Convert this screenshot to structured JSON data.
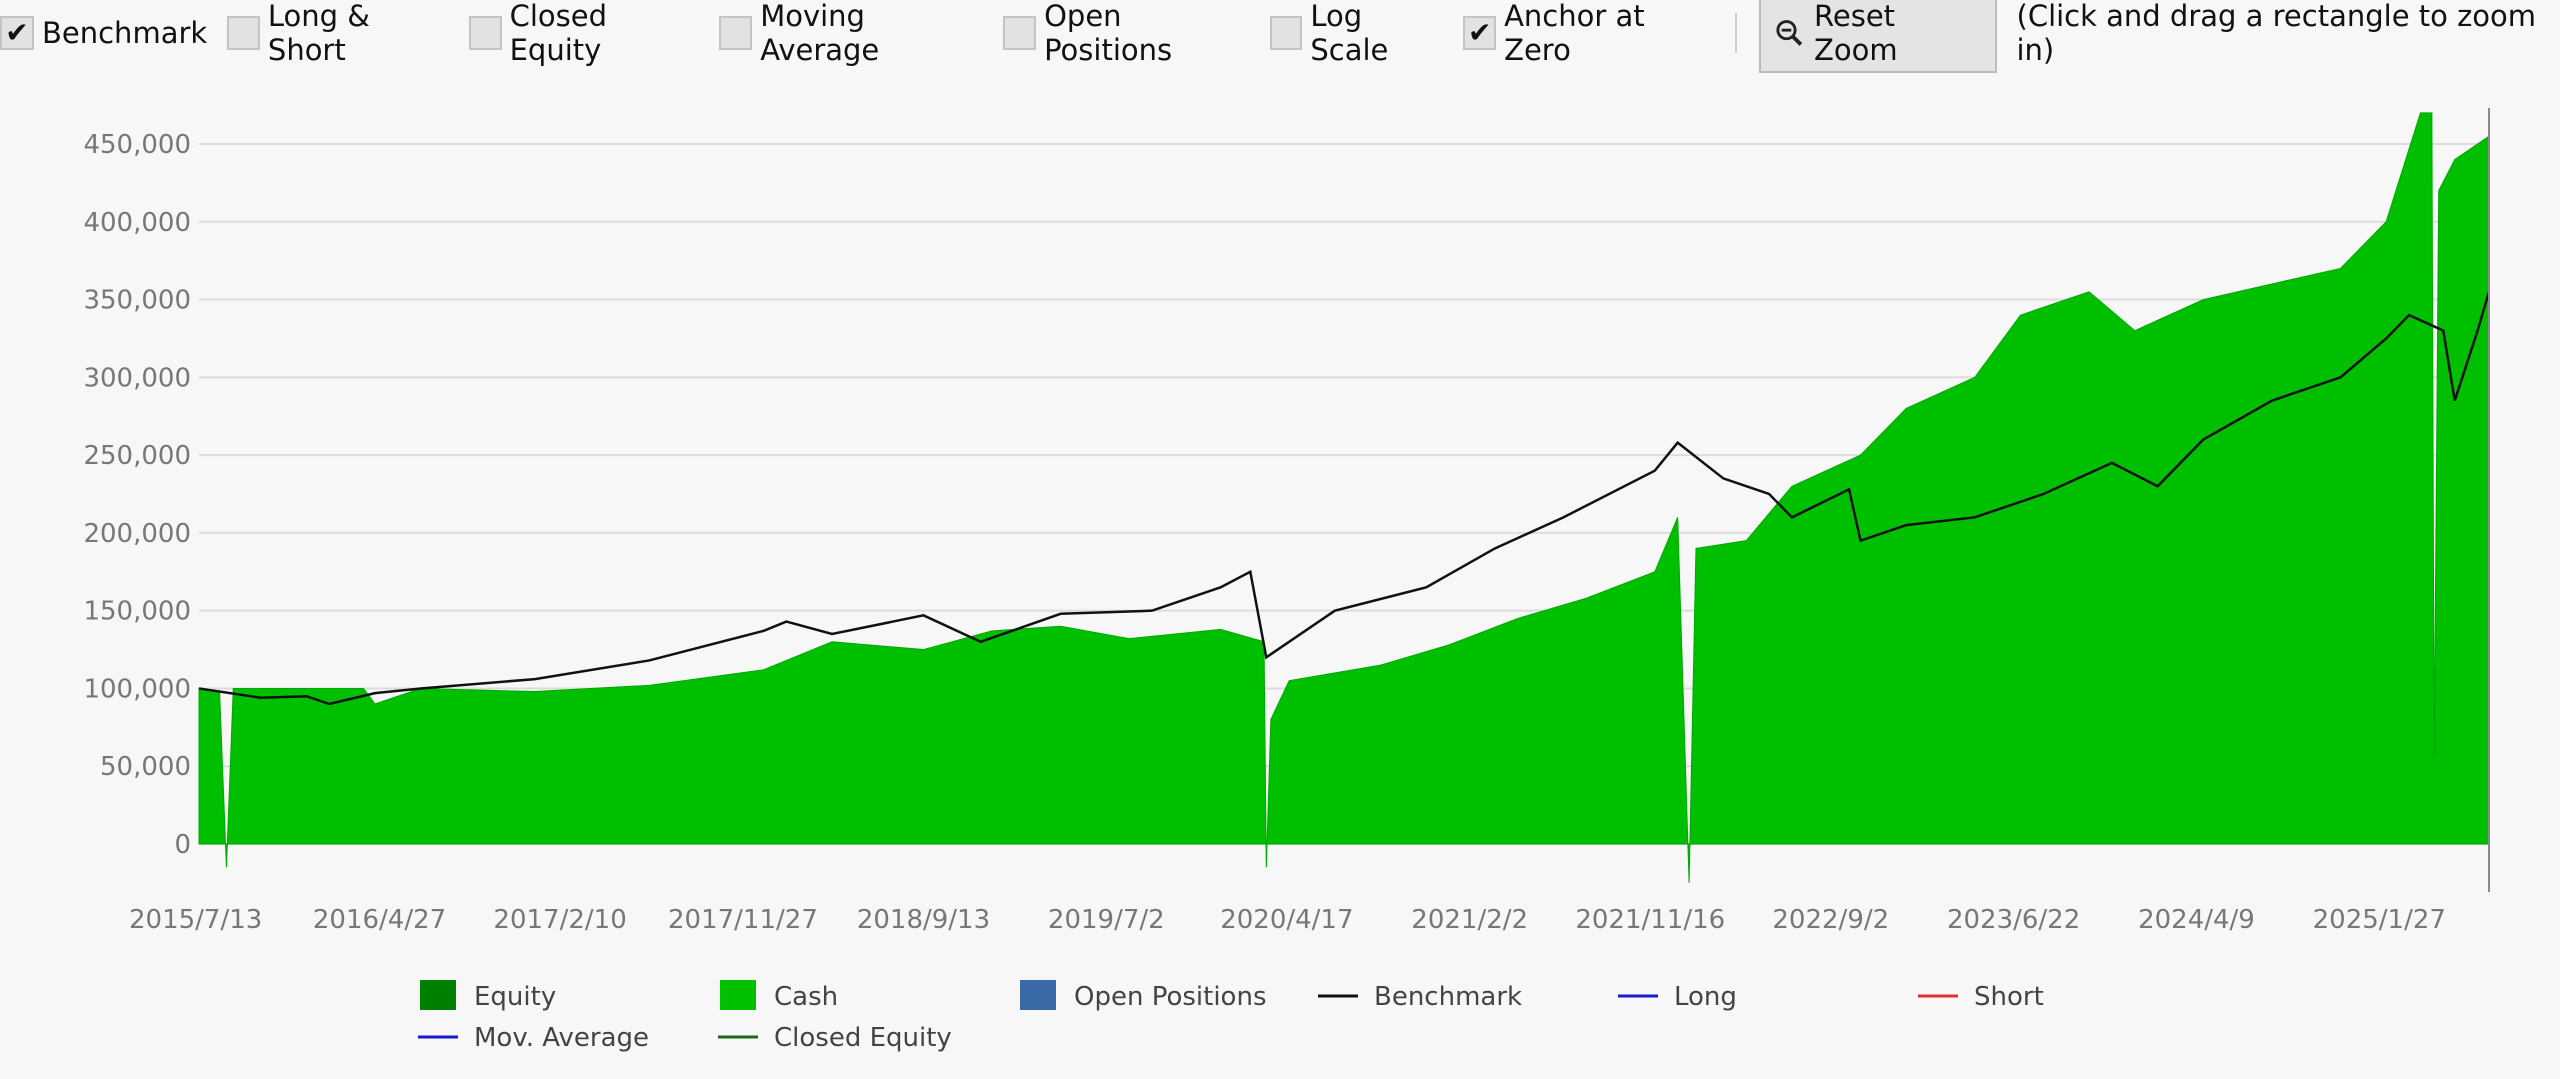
{
  "toolbar": {
    "checkboxes": [
      {
        "label": "Benchmark",
        "checked": true
      },
      {
        "label": "Long & Short",
        "checked": false
      },
      {
        "label": "Closed Equity",
        "checked": false
      },
      {
        "label": "Moving Average",
        "checked": false
      },
      {
        "label": "Open Positions",
        "checked": false
      },
      {
        "label": "Log Scale",
        "checked": false
      },
      {
        "label": "Anchor at Zero",
        "checked": true
      }
    ],
    "reset_zoom": "Reset Zoom",
    "hint": "(Click and drag a rectangle to zoom in)"
  },
  "chart_data": {
    "type": "area",
    "x_range": [
      2015.53,
      2025.55
    ],
    "ylim": [
      0,
      450000
    ],
    "y_ticks": [
      "0",
      "50,000",
      "100,000",
      "150,000",
      "200,000",
      "250,000",
      "300,000",
      "350,000",
      "400,000",
      "450,000"
    ],
    "y_tick_values": [
      0,
      50000,
      100000,
      150000,
      200000,
      250000,
      300000,
      350000,
      400000,
      450000
    ],
    "x_ticks": [
      "2015/7/13",
      "2016/4/27",
      "2017/2/10",
      "2017/11/27",
      "2018/9/13",
      "2019/7/2",
      "2020/4/17",
      "2021/2/2",
      "2021/11/16",
      "2022/9/2",
      "2023/6/22",
      "2024/4/9",
      "2025/1/27"
    ],
    "x_tick_values": [
      2015.53,
      2016.32,
      2017.11,
      2017.91,
      2018.7,
      2019.5,
      2020.29,
      2021.09,
      2021.88,
      2022.67,
      2023.47,
      2024.27,
      2025.07
    ],
    "grid": true,
    "series": [
      {
        "name": "Cash",
        "color": "#00bf00",
        "points": [
          [
            2015.53,
            100000
          ],
          [
            2015.62,
            98000
          ],
          [
            2015.65,
            -15000
          ],
          [
            2015.68,
            100000
          ],
          [
            2016.0,
            100000
          ],
          [
            2016.25,
            100000
          ],
          [
            2016.3,
            90000
          ],
          [
            2016.5,
            100000
          ],
          [
            2017.0,
            98000
          ],
          [
            2017.5,
            102000
          ],
          [
            2018.0,
            112000
          ],
          [
            2018.3,
            130000
          ],
          [
            2018.7,
            125000
          ],
          [
            2019.0,
            137000
          ],
          [
            2019.3,
            140000
          ],
          [
            2019.6,
            132000
          ],
          [
            2020.0,
            138000
          ],
          [
            2020.19,
            130000
          ],
          [
            2020.2,
            -15000
          ],
          [
            2020.22,
            80000
          ],
          [
            2020.3,
            105000
          ],
          [
            2020.7,
            115000
          ],
          [
            2021.0,
            128000
          ],
          [
            2021.3,
            145000
          ],
          [
            2021.6,
            158000
          ],
          [
            2021.9,
            175000
          ],
          [
            2022.0,
            210000
          ],
          [
            2022.05,
            -25000
          ],
          [
            2022.08,
            190000
          ],
          [
            2022.3,
            195000
          ],
          [
            2022.5,
            230000
          ],
          [
            2022.8,
            250000
          ],
          [
            2023.0,
            280000
          ],
          [
            2023.3,
            300000
          ],
          [
            2023.5,
            340000
          ],
          [
            2023.8,
            355000
          ],
          [
            2024.0,
            330000
          ],
          [
            2024.3,
            350000
          ],
          [
            2024.6,
            360000
          ],
          [
            2024.9,
            370000
          ],
          [
            2025.1,
            400000
          ],
          [
            2025.25,
            470000
          ],
          [
            2025.3,
            470000
          ],
          [
            2025.31,
            55000
          ],
          [
            2025.33,
            420000
          ],
          [
            2025.4,
            440000
          ],
          [
            2025.55,
            455000
          ],
          [
            2025.55,
            0
          ]
        ]
      },
      {
        "name": "Benchmark",
        "color": "#111111",
        "points": [
          [
            2015.53,
            100000
          ],
          [
            2015.8,
            94000
          ],
          [
            2016.0,
            95000
          ],
          [
            2016.1,
            90000
          ],
          [
            2016.3,
            97000
          ],
          [
            2016.5,
            100000
          ],
          [
            2017.0,
            106000
          ],
          [
            2017.5,
            118000
          ],
          [
            2018.0,
            137000
          ],
          [
            2018.1,
            143000
          ],
          [
            2018.3,
            135000
          ],
          [
            2018.7,
            147000
          ],
          [
            2018.95,
            130000
          ],
          [
            2019.3,
            148000
          ],
          [
            2019.7,
            150000
          ],
          [
            2020.0,
            165000
          ],
          [
            2020.13,
            175000
          ],
          [
            2020.2,
            120000
          ],
          [
            2020.5,
            150000
          ],
          [
            2020.9,
            165000
          ],
          [
            2021.2,
            190000
          ],
          [
            2021.5,
            210000
          ],
          [
            2021.9,
            240000
          ],
          [
            2022.0,
            258000
          ],
          [
            2022.2,
            235000
          ],
          [
            2022.4,
            225000
          ],
          [
            2022.5,
            210000
          ],
          [
            2022.75,
            228000
          ],
          [
            2022.8,
            195000
          ],
          [
            2023.0,
            205000
          ],
          [
            2023.3,
            210000
          ],
          [
            2023.6,
            225000
          ],
          [
            2023.9,
            245000
          ],
          [
            2024.1,
            230000
          ],
          [
            2024.3,
            260000
          ],
          [
            2024.6,
            285000
          ],
          [
            2024.9,
            300000
          ],
          [
            2025.1,
            325000
          ],
          [
            2025.2,
            340000
          ],
          [
            2025.35,
            330000
          ],
          [
            2025.4,
            285000
          ],
          [
            2025.5,
            330000
          ],
          [
            2025.55,
            355000
          ]
        ]
      }
    ],
    "legend": [
      {
        "label": "Equity",
        "kind": "box",
        "color": "#008000"
      },
      {
        "label": "Cash",
        "kind": "box",
        "color": "#00c000"
      },
      {
        "label": "Open Positions",
        "kind": "box",
        "color": "#3a6aa8"
      },
      {
        "label": "Benchmark",
        "kind": "line",
        "color": "#111111"
      },
      {
        "label": "Long",
        "kind": "line",
        "color": "#1a1ad0"
      },
      {
        "label": "Short",
        "kind": "line",
        "color": "#e03030"
      },
      {
        "label": "Mov. Average",
        "kind": "line",
        "color": "#1a1ad0"
      },
      {
        "label": "Closed Equity",
        "kind": "line",
        "color": "#1a6a1a"
      }
    ]
  }
}
